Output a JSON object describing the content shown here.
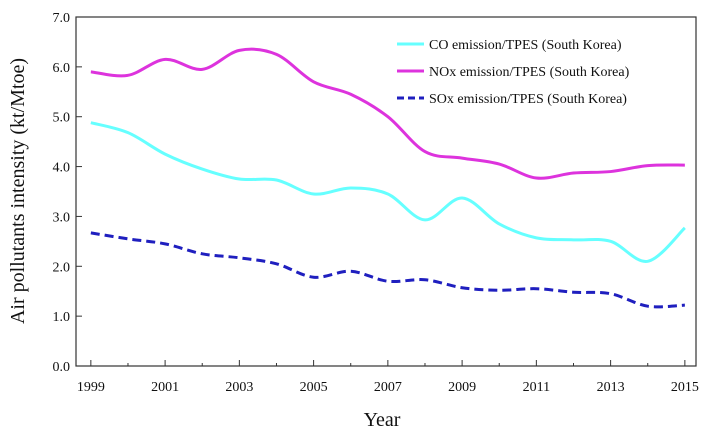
{
  "chart_data": {
    "type": "line",
    "title": "",
    "xlabel": "Year",
    "ylabel": "Air pollutants intensity (kt/Mtoe)",
    "xlim": [
      1998.6,
      2015.3
    ],
    "ylim": [
      0,
      7
    ],
    "x_ticks": [
      1999,
      2001,
      2003,
      2005,
      2007,
      2009,
      2011,
      2013,
      2015
    ],
    "y_ticks": [
      0,
      1,
      2,
      3,
      4,
      5,
      6,
      7
    ],
    "y_tick_labels": [
      "0.0",
      "1.0",
      "2.0",
      "3.0",
      "4.0",
      "5.0",
      "6.0",
      "7.0"
    ],
    "x": [
      1999,
      2000,
      2001,
      2002,
      2003,
      2004,
      2005,
      2006,
      2007,
      2008,
      2009,
      2010,
      2011,
      2012,
      2013,
      2014,
      2015
    ],
    "series": [
      {
        "name": "CO emission/TPES (South Korea)",
        "color": "#66ffff",
        "dash": "solid",
        "values": [
          4.88,
          4.68,
          4.25,
          3.95,
          3.75,
          3.73,
          3.45,
          3.57,
          3.45,
          2.93,
          3.37,
          2.85,
          2.57,
          2.53,
          2.5,
          2.1,
          2.77
        ]
      },
      {
        "name": "NOx emission/TPES (South Korea)",
        "color": "#dd33dd",
        "dash": "solid",
        "values": [
          5.9,
          5.83,
          6.15,
          5.95,
          6.33,
          6.25,
          5.7,
          5.45,
          5.0,
          4.3,
          4.17,
          4.05,
          3.77,
          3.87,
          3.9,
          4.02,
          4.03
        ]
      },
      {
        "name": "SOx emission/TPES (South Korea)",
        "color": "#1f1fbf",
        "dash": "dashed",
        "values": [
          2.67,
          2.55,
          2.45,
          2.25,
          2.17,
          2.05,
          1.78,
          1.9,
          1.7,
          1.73,
          1.57,
          1.52,
          1.55,
          1.48,
          1.45,
          1.2,
          1.22
        ]
      }
    ],
    "legend_position": "top-right",
    "grid": false
  }
}
